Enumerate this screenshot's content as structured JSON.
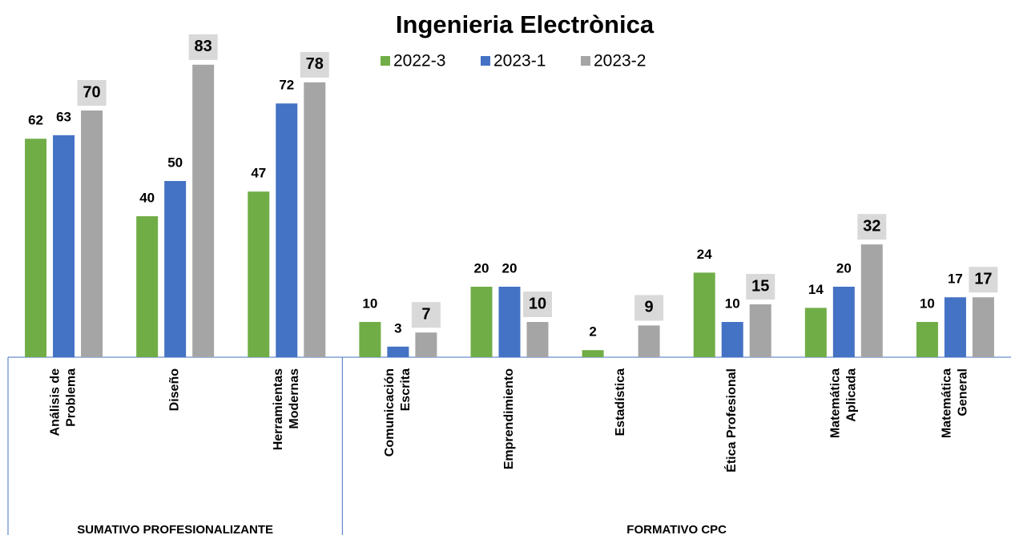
{
  "chart_data": {
    "type": "bar",
    "title": "Ingenieria Electrònica",
    "groups": [
      {
        "label": "SUMATIVO PROFESIONALIZANTE",
        "categories": [
          "Análisis de\nProblema",
          "Diseño",
          "Herramientas\nModernas"
        ]
      },
      {
        "label": "FORMATIVO CPC",
        "categories": [
          "Comunicación\nEscrita",
          "Emprendimiento",
          "Estadística",
          "Ética Profesional",
          "Matemática\nAplicada",
          "Matemática\nGeneral"
        ]
      }
    ],
    "series": [
      {
        "name": "2022-3",
        "color": "#70ad47",
        "values": [
          62,
          40,
          47,
          10,
          20,
          2,
          24,
          14,
          10
        ]
      },
      {
        "name": "2023-1",
        "color": "#4472c4",
        "values": [
          63,
          50,
          72,
          3,
          20,
          null,
          10,
          20,
          17
        ]
      },
      {
        "name": "2023-2",
        "color": "#a5a5a5",
        "values": [
          70,
          83,
          78,
          7,
          10,
          9,
          15,
          32,
          17
        ]
      }
    ],
    "ylim": [
      0,
      90
    ]
  }
}
